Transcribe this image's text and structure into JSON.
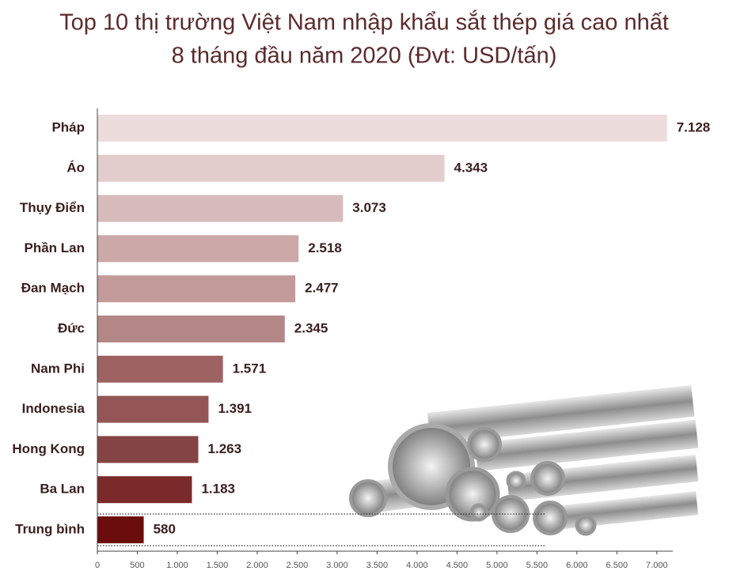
{
  "chart_data": {
    "type": "barh",
    "title": "Top 10 thị trường Việt Nam nhập khẩu sắt thép giá cao nhất",
    "subtitle": "8 tháng đầu năm 2020 (Đvt: USD/tấn)",
    "categories": [
      "Pháp",
      "Áo",
      "Thụy Điển",
      "Phần Lan",
      "Đan Mạch",
      "Đức",
      "Nam Phi",
      "Indonesia",
      "Hong Kong",
      "Ba Lan",
      "Trung bình"
    ],
    "values": [
      7128,
      4343,
      3073,
      2518,
      2477,
      2345,
      1571,
      1391,
      1263,
      1183,
      580
    ],
    "value_labels": [
      "7.128",
      "4.343",
      "3.073",
      "2.518",
      "2.477",
      "2.345",
      "1.571",
      "1.391",
      "1.263",
      "1.183",
      "580"
    ],
    "colors": [
      "#ecdcdc",
      "#e3cccc",
      "#d8bcbc",
      "#cca8a8",
      "#c29a9a",
      "#b48787",
      "#9e6262",
      "#935555",
      "#854444",
      "#7a2a2a",
      "#6b0d0d"
    ],
    "xlim": [
      0,
      7200
    ],
    "xticks": [
      0,
      500,
      {
        "value": 1000,
        "label": "1.000"
      },
      {
        "value": 1500,
        "label": "1.500"
      },
      {
        "value": 2000,
        "label": "2.000"
      },
      {
        "value": 2500,
        "label": "2.500"
      },
      {
        "value": 3000,
        "label": "3.000"
      },
      {
        "value": 3500,
        "label": "3.500"
      },
      {
        "value": 4000,
        "label": "4.000"
      },
      {
        "value": 4500,
        "label": "4.500"
      },
      {
        "value": 5000,
        "label": "5.000"
      },
      {
        "value": 5500,
        "label": "5.500"
      },
      {
        "value": 6000,
        "label": "6.000"
      },
      {
        "value": 6500,
        "label": "6.500"
      },
      {
        "value": 7000,
        "label": "7.000"
      }
    ]
  }
}
